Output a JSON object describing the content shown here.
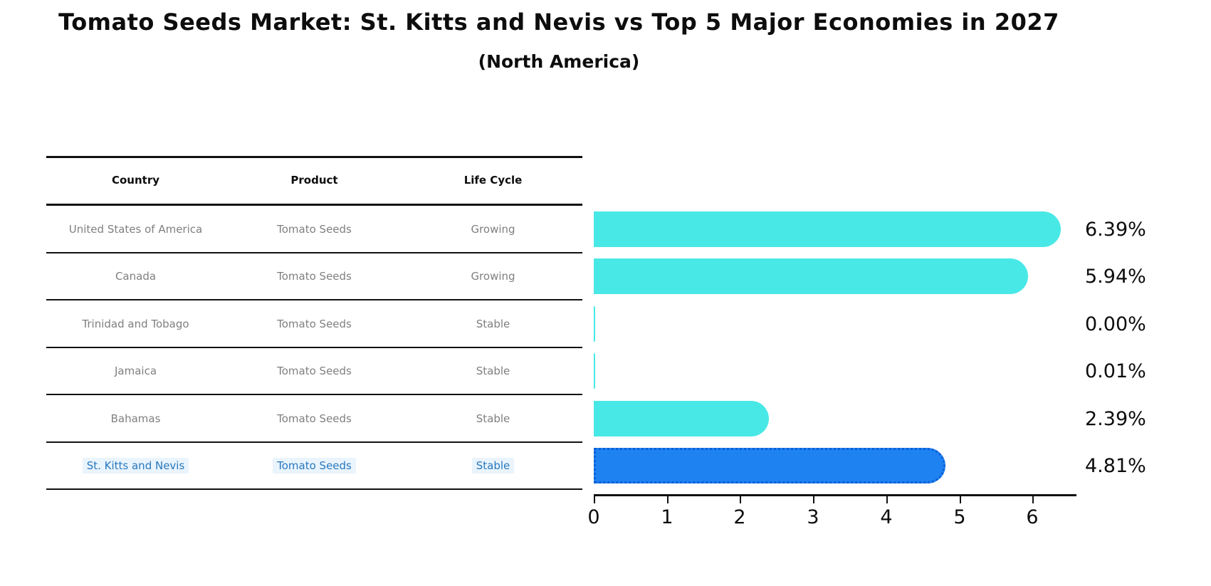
{
  "header": {
    "title": "Tomato Seeds Market: St. Kitts and Nevis vs Top 5 Major Economies in 2027",
    "subtitle": "(North America)"
  },
  "table": {
    "columns": [
      "Country",
      "Product",
      "Life Cycle"
    ],
    "rows": [
      {
        "country": "United States of America",
        "product": "Tomato Seeds",
        "life_cycle": "Growing"
      },
      {
        "country": "Canada",
        "product": "Tomato Seeds",
        "life_cycle": "Growing"
      },
      {
        "country": "Trinidad and Tobago",
        "product": "Tomato Seeds",
        "life_cycle": "Stable"
      },
      {
        "country": "Jamaica",
        "product": "Tomato Seeds",
        "life_cycle": "Stable"
      },
      {
        "country": "Bahamas",
        "product": "Tomato Seeds",
        "life_cycle": "Stable"
      },
      {
        "country": "St. Kitts and Nevis",
        "product": "Tomato Seeds",
        "life_cycle": "Stable"
      }
    ],
    "highlighted_row": "St. Kitts and Nevis"
  },
  "chart_data": {
    "type": "bar",
    "orientation": "horizontal",
    "title": "Tomato Seeds Market: St. Kitts and Nevis vs Top 5 Major Economies in 2027 (North America)",
    "categories": [
      "United States of America",
      "Canada",
      "Trinidad and Tobago",
      "Jamaica",
      "Bahamas",
      "St. Kitts and Nevis"
    ],
    "values": [
      6.39,
      5.94,
      0.0,
      0.01,
      2.39,
      4.81
    ],
    "value_labels": [
      "6.39%",
      "5.94%",
      "0.00%",
      "0.01%",
      "2.39%",
      "4.81%"
    ],
    "x_ticks": [
      "0",
      "1",
      "2",
      "3",
      "4",
      "5",
      "6"
    ],
    "xlim": [
      0,
      6.6
    ],
    "xlabel": "",
    "ylabel": "",
    "grid": false,
    "legend": "none",
    "bar_color": "#48e8e6",
    "highlight_index": 5,
    "highlight_color": "#1e82f0",
    "highlight_edge_color": "#0c5ed8",
    "highlight_edge_style": "dotted"
  },
  "colors": {
    "text_primary": "#0d0d0d",
    "text_muted": "#7f7f7f",
    "text_highlight": "#2878be",
    "highlight_cell_bg": "#eaf4fc",
    "table_line": "#111111",
    "background": "#ffffff"
  }
}
